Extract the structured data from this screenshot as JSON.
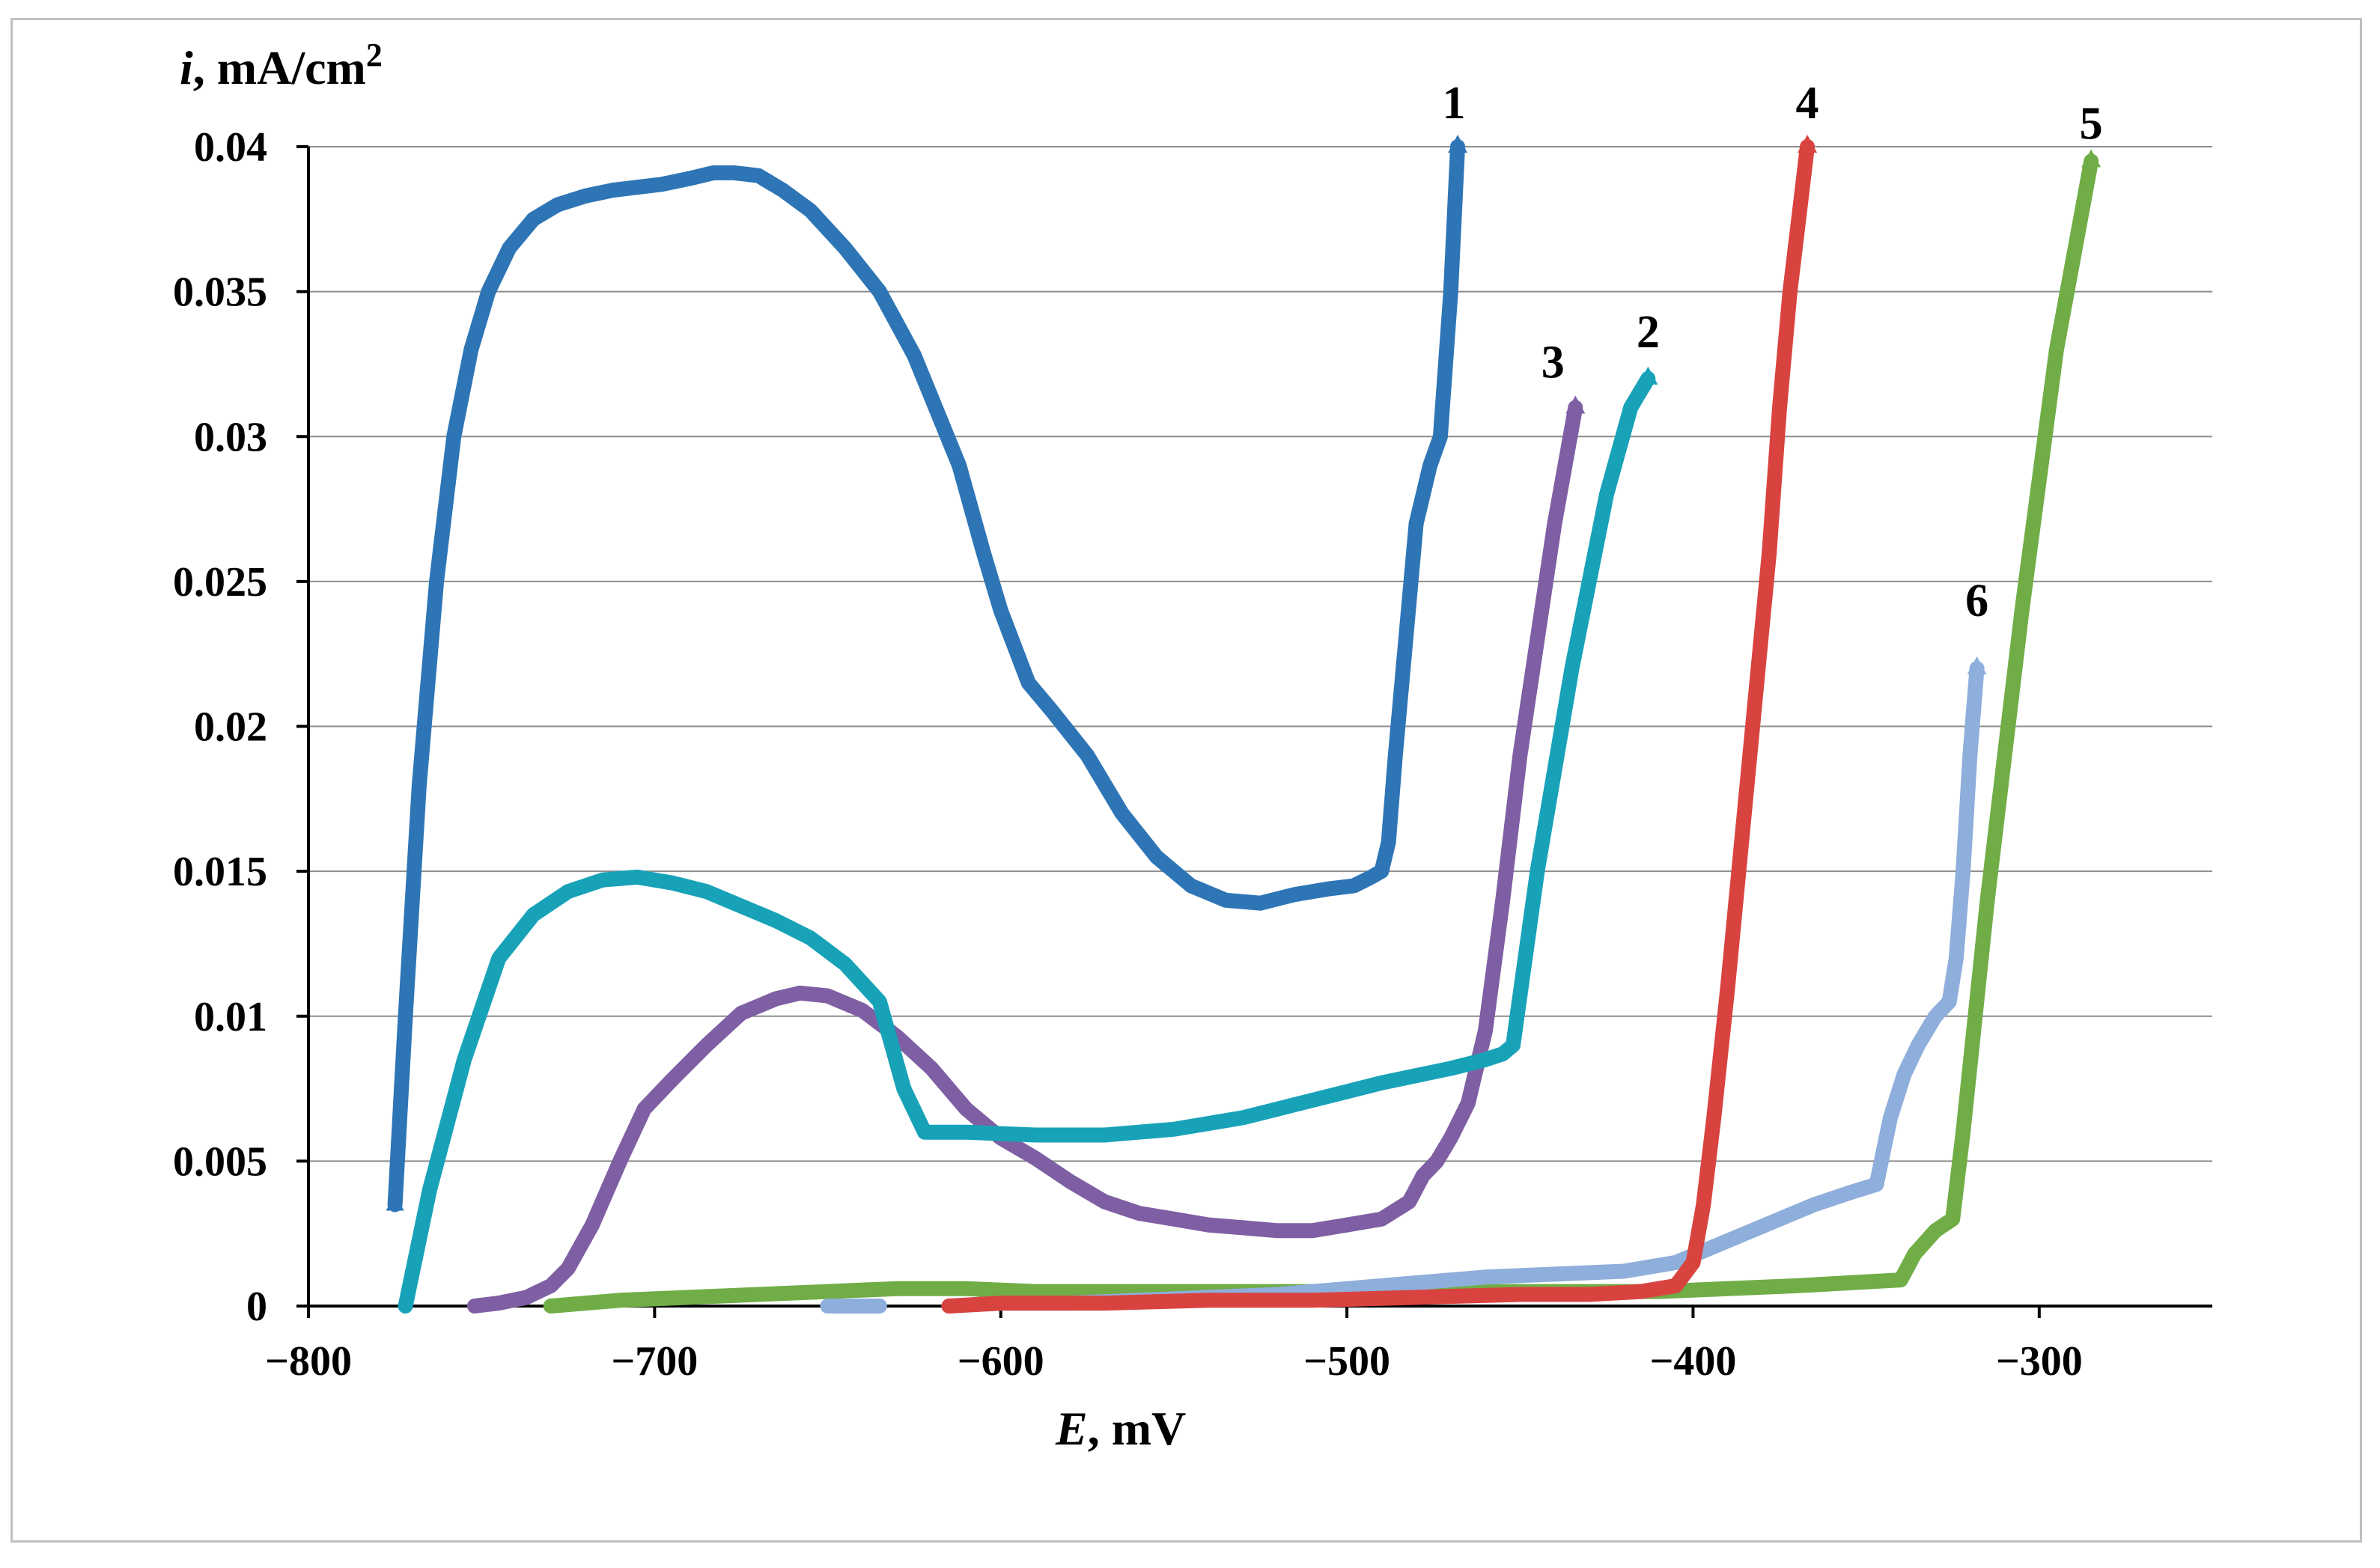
{
  "chart_data": {
    "type": "line",
    "title": "",
    "xlabel_var": "E",
    "xlabel_unit": ", mV",
    "ylabel_var": "i",
    "ylabel_unit": ", mA/cm",
    "ylabel_sup": "2",
    "xlim": [
      -800,
      -250
    ],
    "ylim": [
      0,
      0.04
    ],
    "x_ticks": [
      -800,
      -700,
      -600,
      -500,
      -400,
      -300
    ],
    "x_tick_labels": [
      "−800",
      "−700",
      "−600",
      "−500",
      "−400",
      "−300"
    ],
    "y_ticks": [
      0,
      0.005,
      0.01,
      0.015,
      0.02,
      0.025,
      0.03,
      0.035,
      0.04
    ],
    "y_tick_labels": [
      "0",
      "0.005",
      "0.01",
      "0.015",
      "0.02",
      "0.025",
      "0.03",
      "0.035",
      "0.04"
    ],
    "grid": true,
    "series": [
      {
        "name": "1",
        "label": "1",
        "color": "#2e75b6",
        "x": [
          -775,
          -772,
          -768,
          -763,
          -758,
          -753,
          -748,
          -742,
          -735,
          -728,
          -720,
          -712,
          -705,
          -698,
          -690,
          -683,
          -677,
          -670,
          -663,
          -655,
          -645,
          -635,
          -625,
          -612,
          -605,
          -600,
          -592,
          -585,
          -575,
          -565,
          -555,
          -545,
          -535,
          -525,
          -515,
          -505,
          -498,
          -493,
          -490,
          -488,
          -486,
          -483,
          -480,
          -476,
          -473,
          -470,
          -468
        ],
        "y": [
          0.0035,
          0.01,
          0.018,
          0.025,
          0.03,
          0.033,
          0.035,
          0.0365,
          0.0375,
          0.038,
          0.0383,
          0.0385,
          0.0386,
          0.0387,
          0.0389,
          0.0391,
          0.0391,
          0.039,
          0.0385,
          0.0378,
          0.0365,
          0.035,
          0.0328,
          0.029,
          0.026,
          0.024,
          0.0215,
          0.0205,
          0.019,
          0.017,
          0.0155,
          0.0145,
          0.014,
          0.0139,
          0.0142,
          0.0144,
          0.0145,
          0.0148,
          0.015,
          0.016,
          0.019,
          0.023,
          0.027,
          0.029,
          0.03,
          0.035,
          0.04
        ]
      },
      {
        "name": "2",
        "label": "2",
        "color": "#17a2b8",
        "x": [
          -772,
          -765,
          -755,
          -745,
          -735,
          -725,
          -715,
          -705,
          -695,
          -685,
          -675,
          -665,
          -655,
          -645,
          -635,
          -628,
          -622,
          -610,
          -590,
          -570,
          -550,
          -530,
          -510,
          -490,
          -470,
          -460,
          -455,
          -452,
          -445,
          -435,
          -425,
          -418,
          -413
        ],
        "y": [
          0.0,
          0.004,
          0.0085,
          0.012,
          0.0135,
          0.0143,
          0.0147,
          0.0148,
          0.0146,
          0.0143,
          0.0138,
          0.0133,
          0.0127,
          0.0118,
          0.0105,
          0.0075,
          0.006,
          0.006,
          0.0059,
          0.0059,
          0.0061,
          0.0065,
          0.0071,
          0.0077,
          0.0082,
          0.0085,
          0.0087,
          0.009,
          0.015,
          0.022,
          0.028,
          0.031,
          0.032
        ]
      },
      {
        "name": "3",
        "label": "3",
        "color": "#7f5fa3",
        "x": [
          -752,
          -745,
          -737,
          -730,
          -725,
          -718,
          -710,
          -703,
          -695,
          -685,
          -675,
          -665,
          -658,
          -650,
          -640,
          -630,
          -620,
          -610,
          -600,
          -590,
          -580,
          -570,
          -560,
          -550,
          -540,
          -530,
          -520,
          -510,
          -500,
          -490,
          -482,
          -478,
          -474,
          -470,
          -465,
          -460,
          -455,
          -450,
          -445,
          -440,
          -437,
          -434
        ],
        "y": [
          0.0,
          0.0001,
          0.0003,
          0.0007,
          0.0013,
          0.0028,
          0.005,
          0.0068,
          0.0078,
          0.009,
          0.0101,
          0.0106,
          0.0108,
          0.0107,
          0.0102,
          0.0093,
          0.0082,
          0.0068,
          0.0058,
          0.0051,
          0.0043,
          0.0036,
          0.0032,
          0.003,
          0.0028,
          0.0027,
          0.0026,
          0.0026,
          0.0028,
          0.003,
          0.0036,
          0.0045,
          0.005,
          0.0058,
          0.007,
          0.0095,
          0.014,
          0.019,
          0.023,
          0.027,
          0.029,
          0.031
        ]
      },
      {
        "name": "4",
        "label": "4",
        "color": "#d9433f",
        "x": [
          -615,
          -600,
          -570,
          -540,
          -510,
          -480,
          -450,
          -430,
          -415,
          -405,
          -400,
          -397,
          -394,
          -390,
          -386,
          -382,
          -378,
          -375,
          -372,
          -369,
          -367
        ],
        "y": [
          0.0,
          0.0001,
          0.0001,
          0.0002,
          0.0002,
          0.0003,
          0.0004,
          0.0004,
          0.0005,
          0.0007,
          0.0015,
          0.0035,
          0.0065,
          0.011,
          0.016,
          0.021,
          0.026,
          0.031,
          0.035,
          0.038,
          0.04
        ]
      },
      {
        "name": "5",
        "label": "5",
        "color": "#70ad47",
        "x": [
          -730,
          -710,
          -690,
          -670,
          -650,
          -630,
          -610,
          -590,
          -560,
          -530,
          -500,
          -470,
          -440,
          -410,
          -390,
          -370,
          -355,
          -340,
          -336,
          -330,
          -325,
          -322,
          -315,
          -305,
          -295,
          -285
        ],
        "y": [
          0.0,
          0.0002,
          0.0003,
          0.0004,
          0.0005,
          0.0006,
          0.0006,
          0.0005,
          0.0005,
          0.0005,
          0.0005,
          0.0005,
          0.0005,
          0.0005,
          0.0006,
          0.0007,
          0.0008,
          0.0009,
          0.0018,
          0.0026,
          0.003,
          0.006,
          0.014,
          0.024,
          0.033,
          0.0395
        ]
      },
      {
        "name": "6",
        "label": "6",
        "color": "#8eaedb",
        "x": [
          -615,
          -600,
          -580,
          -560,
          -540,
          -520,
          -500,
          -480,
          -460,
          -440,
          -420,
          -405,
          -395,
          -385,
          -375,
          -365,
          -355,
          -347,
          -343,
          -339,
          -335,
          -330,
          -326,
          -324,
          -322,
          -320,
          -318
        ],
        "y": [
          0.0,
          0.0001,
          0.0001,
          0.0002,
          0.0003,
          0.0004,
          0.0006,
          0.0008,
          0.001,
          0.0011,
          0.0012,
          0.0015,
          0.002,
          0.0025,
          0.003,
          0.0035,
          0.0039,
          0.0042,
          0.0065,
          0.008,
          0.009,
          0.01,
          0.0105,
          0.012,
          0.015,
          0.019,
          0.022
        ]
      },
      {
        "name": "6-start-segment",
        "label": "",
        "color": "#8eaedb",
        "x": [
          -650,
          -645,
          -640,
          -635
        ],
        "y": [
          0.0,
          0.0,
          0.0,
          0.0
        ]
      }
    ]
  }
}
